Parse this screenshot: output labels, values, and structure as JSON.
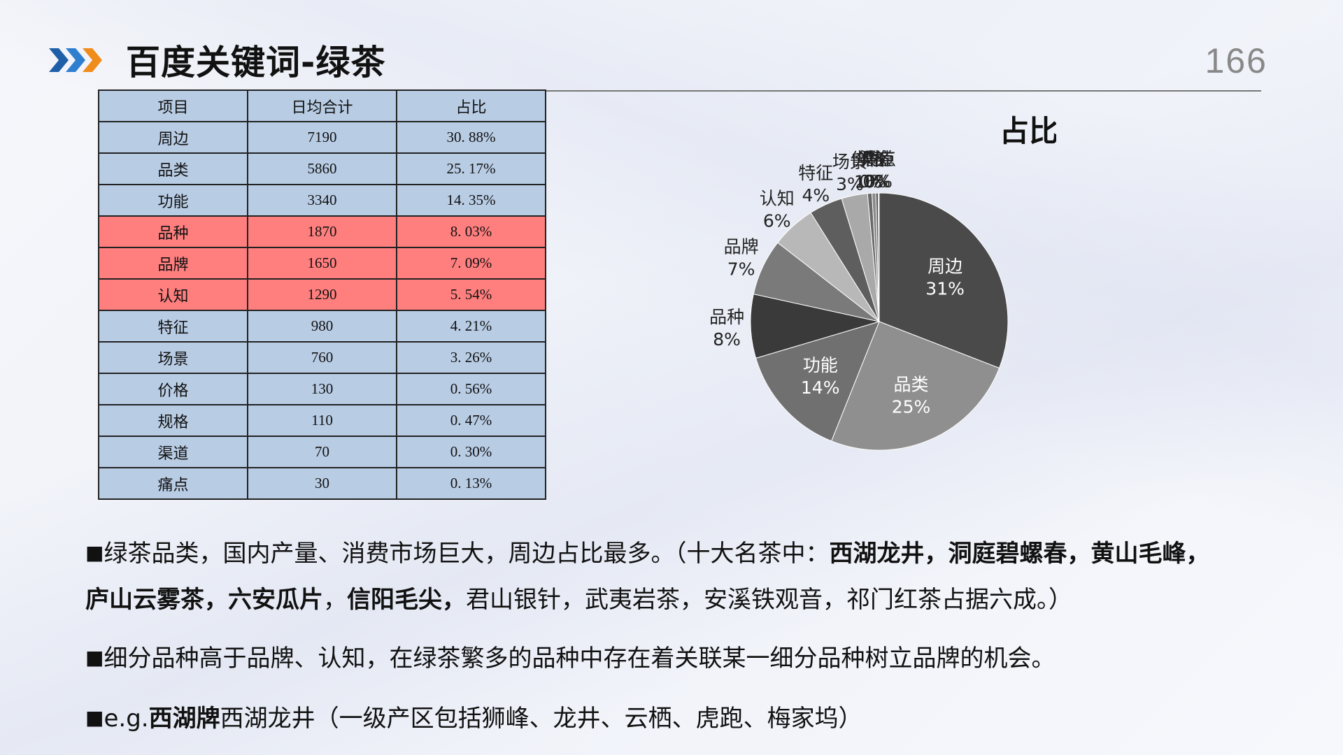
{
  "header": {
    "title": "百度关键词-绿茶",
    "page_number": "166",
    "chevron_colors": [
      "#1f5fa8",
      "#2f7fd0",
      "#f08c1a"
    ]
  },
  "table": {
    "headers": [
      "项目",
      "日均合计",
      "占比"
    ],
    "rows": [
      {
        "item": "周边",
        "daily": "7190",
        "share": "30. 88%",
        "highlight": false
      },
      {
        "item": "品类",
        "daily": "5860",
        "share": "25. 17%",
        "highlight": false
      },
      {
        "item": "功能",
        "daily": "3340",
        "share": "14. 35%",
        "highlight": false
      },
      {
        "item": "品种",
        "daily": "1870",
        "share": "8. 03%",
        "highlight": true
      },
      {
        "item": "品牌",
        "daily": "1650",
        "share": "7. 09%",
        "highlight": true
      },
      {
        "item": "认知",
        "daily": "1290",
        "share": "5. 54%",
        "highlight": true
      },
      {
        "item": "特征",
        "daily": "980",
        "share": "4. 21%",
        "highlight": false
      },
      {
        "item": "场景",
        "daily": "760",
        "share": "3. 26%",
        "highlight": false
      },
      {
        "item": "价格",
        "daily": "130",
        "share": "0. 56%",
        "highlight": false
      },
      {
        "item": "规格",
        "daily": "110",
        "share": "0. 47%",
        "highlight": false
      },
      {
        "item": "渠道",
        "daily": "70",
        "share": "0. 30%",
        "highlight": false
      },
      {
        "item": "痛点",
        "daily": "30",
        "share": "0. 13%",
        "highlight": false
      }
    ],
    "colors": {
      "normal": "#b8cce4",
      "highlight": "#ff7f7f"
    }
  },
  "chart_data": {
    "type": "pie",
    "title": "占比",
    "categories": [
      "周边",
      "品类",
      "功能",
      "品种",
      "品牌",
      "认知",
      "特征",
      "场景",
      "价格",
      "规格",
      "渠道",
      "痛点"
    ],
    "values": [
      7190,
      5860,
      3340,
      1870,
      1650,
      1290,
      980,
      760,
      130,
      110,
      70,
      30
    ],
    "percent_labels": [
      "31%",
      "25%",
      "14%",
      "8%",
      "7%",
      "6%",
      "4%",
      "3%",
      "1%",
      "0%",
      "0%",
      "0%"
    ],
    "colors": [
      "#4a4a4a",
      "#8f8f8f",
      "#707070",
      "#3a3a3a",
      "#7a7a7a",
      "#b8b8b8",
      "#5e5e5e",
      "#a9a9a9",
      "#6a6a6a",
      "#8a8a8a",
      "#555555",
      "#9a9a9a"
    ]
  },
  "body": {
    "bullet": "■",
    "para1": {
      "a": "绿茶品类，国内产量、消费市场巨大，周边占比最多。（十大名茶中：",
      "b": "西湖龙井，洞庭碧螺春，黄山毛峰，庐山云雾茶，六安瓜片",
      "c": "，",
      "d": "信阳毛尖，",
      "e": "君山银针，武夷岩茶，安溪铁观音，祁门红茶占据六成。）"
    },
    "para2": "细分品种高于品牌、认知，在绿茶繁多的品种中存在着关联某一细分品种树立品牌的机会。",
    "para3": {
      "a": "e.g.",
      "b": "西湖牌",
      "c": "西湖龙井（一级产区包括狮峰、龙井、云栖、虎跑、梅家坞）"
    }
  }
}
